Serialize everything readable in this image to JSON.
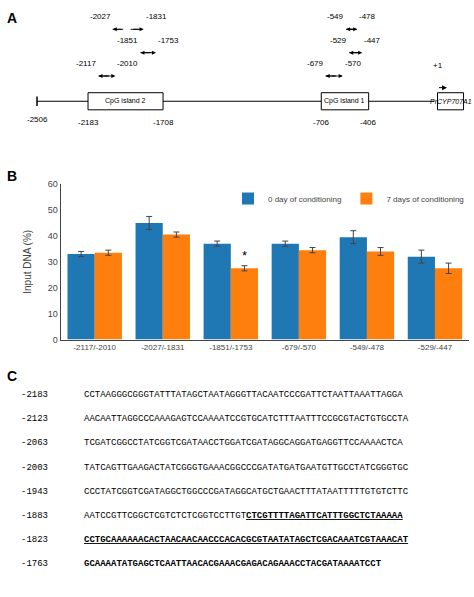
{
  "chart_data": [
    {
      "type": "diagram",
      "title": "A",
      "xlim": [
        -2650,
        200
      ],
      "tick_labels": false,
      "start": -2506,
      "regions": [
        {
          "name": "CpG island 2",
          "x": [
            -2183,
            -1708
          ]
        },
        {
          "name": "CpG island 1",
          "x": [
            -706,
            -406
          ]
        }
      ],
      "gene": "PrCYP707A1",
      "tss": "+1",
      "top_brackets": [
        [
          -2027,
          -1831
        ],
        [
          -549,
          -478
        ]
      ],
      "bottom_brackets": [
        [
          -2117,
          -2010
        ],
        [
          -1851,
          -1753
        ],
        [
          -679,
          -570
        ],
        [
          -529,
          -447
        ]
      ]
    },
    {
      "type": "bar",
      "title": "B",
      "categories": [
        "-2117/-2010",
        "-2027/-1831",
        "-1851/-1753",
        "-679/-570",
        "-549/-478",
        "-529/-447"
      ],
      "series": [
        {
          "name": "0 day of conditioning",
          "values": [
            33.0,
            45.0,
            37.0,
            37.0,
            39.5,
            32.0
          ],
          "errors": [
            1.0,
            2.5,
            1.0,
            1.0,
            2.5,
            2.5
          ]
        },
        {
          "name": "7 days of conditioning",
          "values": [
            33.5,
            40.5,
            27.5,
            34.5,
            34.0,
            27.5
          ],
          "errors": [
            1.0,
            1.0,
            1.0,
            1.0,
            1.5,
            2.0
          ]
        }
      ],
      "ylabel": "Input DNA (%)",
      "ylim": [
        0,
        60
      ],
      "yticks": [
        0,
        10,
        20,
        30,
        40,
        50,
        60
      ],
      "legend": "upper right",
      "grid": false,
      "annotations": [
        {
          "text": "*",
          "category": "-1851/-1753",
          "series": "7 days of conditioning"
        }
      ]
    },
    {
      "type": "text",
      "title": "C",
      "lines": [
        {
          "label": "-2183",
          "segments": [
            {
              "text": "CCTAAGGGCGGGTATTTATAGCTAATAGGGTTACAATCCCGATTCTAATTAAATTAGGA",
              "bold": false,
              "underline": false
            }
          ]
        },
        {
          "label": "-2123",
          "segments": [
            {
              "text": "AACAATTAGGCCCAAAGAGTCCAAAATCCGTGCATCTTTAATTTCCGCGTACTGTGCCTA",
              "bold": false,
              "underline": false
            }
          ]
        },
        {
          "label": "-2063",
          "segments": [
            {
              "text": "TCGATCGGCCTATCGGTCGATAACCTGGATCGATAGGCAGGATGAGGTTCCAAAACTCA",
              "bold": false,
              "underline": false
            }
          ]
        },
        {
          "label": "-2003",
          "segments": [
            {
              "text": "TATCAGTTGAAGACTATCGGGTGAAACGGCCCGATATGATGAATGTTGCCTATCGGGTGC",
              "bold": false,
              "underline": false
            }
          ]
        },
        {
          "label": "-1943",
          "segments": [
            {
              "text": "CCCTATCGGTCGATAGGCTGGCCCGATAGGCATGCTGAACTTTATAATTTTTGTGTCTTC",
              "bold": false,
              "underline": false
            }
          ]
        },
        {
          "label": "-1883",
          "segments": [
            {
              "text": "AATCCGTTCGGCTCGTCTCTCGGTCCTTGT",
              "bold": false,
              "underline": false
            },
            {
              "text": "CTCGTTTTAGATTCATTTGGCTCTAAAAA",
              "bold": true,
              "underline": true
            }
          ]
        },
        {
          "label": "-1823",
          "segments": [
            {
              "text": "CCTGCAAAAAACACTAACAACAACCCACACGCGTAATATAGCTCGACAAATCGTAAACAT",
              "bold": true,
              "underline": true
            }
          ]
        },
        {
          "label": "-1763",
          "segments": [
            {
              "text": "GCAAAATATGAGCTCAATTAACACGAAACGAGACAGAAACCTACGATAAAATCCT",
              "bold": true,
              "underline": false
            }
          ]
        }
      ]
    }
  ]
}
